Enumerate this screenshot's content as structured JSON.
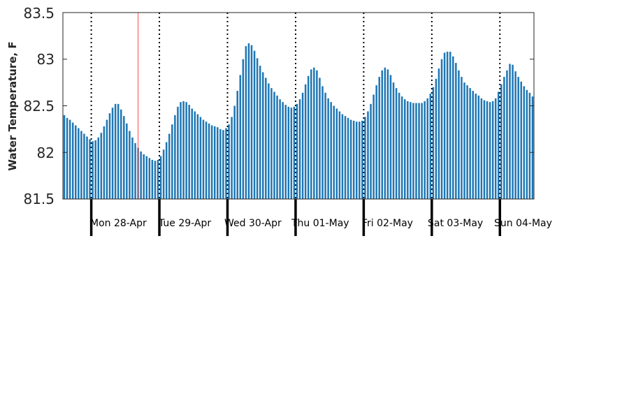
{
  "chart_data": {
    "type": "bar",
    "title": "",
    "xlabel": "",
    "ylabel": "Water Temperature, F",
    "ylim": [
      81.5,
      83.5
    ],
    "yticks": [
      "81.5",
      "82",
      "82.5",
      "83",
      "83.5"
    ],
    "day_labels": [
      "Mon 28-Apr",
      "Tue 29-Apr",
      "Wed 30-Apr",
      "Thu 01-May",
      "Fri 02-May",
      "Sat 03-May",
      "Sun 04-May"
    ],
    "bar_color": "#1f77b4",
    "marker_color": "#ff4d4d",
    "grid": false,
    "values": [
      82.4,
      82.37,
      82.35,
      82.32,
      82.29,
      82.26,
      82.23,
      82.2,
      82.17,
      82.14,
      82.12,
      82.13,
      82.16,
      82.21,
      82.28,
      82.35,
      82.42,
      82.48,
      82.52,
      82.52,
      82.46,
      82.39,
      82.31,
      82.23,
      82.16,
      82.1,
      82.05,
      82.01,
      81.98,
      81.96,
      81.94,
      81.92,
      81.91,
      81.92,
      81.96,
      82.03,
      82.11,
      82.2,
      82.3,
      82.4,
      82.49,
      82.54,
      82.55,
      82.54,
      82.51,
      82.47,
      82.44,
      82.41,
      82.38,
      82.35,
      82.33,
      82.31,
      82.29,
      82.28,
      82.27,
      82.25,
      82.24,
      82.26,
      82.3,
      82.38,
      82.5,
      82.66,
      82.83,
      83.0,
      83.14,
      83.17,
      83.15,
      83.09,
      83.01,
      82.93,
      82.86,
      82.8,
      82.74,
      82.69,
      82.65,
      82.61,
      82.57,
      82.54,
      82.51,
      82.49,
      82.48,
      82.49,
      82.52,
      82.57,
      82.64,
      82.73,
      82.82,
      82.89,
      82.91,
      82.88,
      82.8,
      82.71,
      82.64,
      82.58,
      82.54,
      82.5,
      82.47,
      82.44,
      82.41,
      82.39,
      82.37,
      82.35,
      82.34,
      82.33,
      82.33,
      82.34,
      82.38,
      82.44,
      82.52,
      82.62,
      82.72,
      82.81,
      82.88,
      82.91,
      82.89,
      82.83,
      82.75,
      82.69,
      82.64,
      82.6,
      82.57,
      82.55,
      82.54,
      82.53,
      82.53,
      82.53,
      82.53,
      82.55,
      82.58,
      82.63,
      82.7,
      82.79,
      82.9,
      83.0,
      83.07,
      83.08,
      83.08,
      83.03,
      82.96,
      82.88,
      82.81,
      82.75,
      82.72,
      82.69,
      82.66,
      82.63,
      82.61,
      82.58,
      82.56,
      82.55,
      82.54,
      82.55,
      82.58,
      82.65,
      82.73,
      82.81,
      82.88,
      82.95,
      82.94,
      82.87,
      82.81,
      82.76,
      82.71,
      82.67,
      82.64,
      82.6
    ],
    "day_start_indices": [
      10,
      34,
      58,
      82,
      106,
      130,
      154
    ],
    "marker_index": 26.5
  }
}
